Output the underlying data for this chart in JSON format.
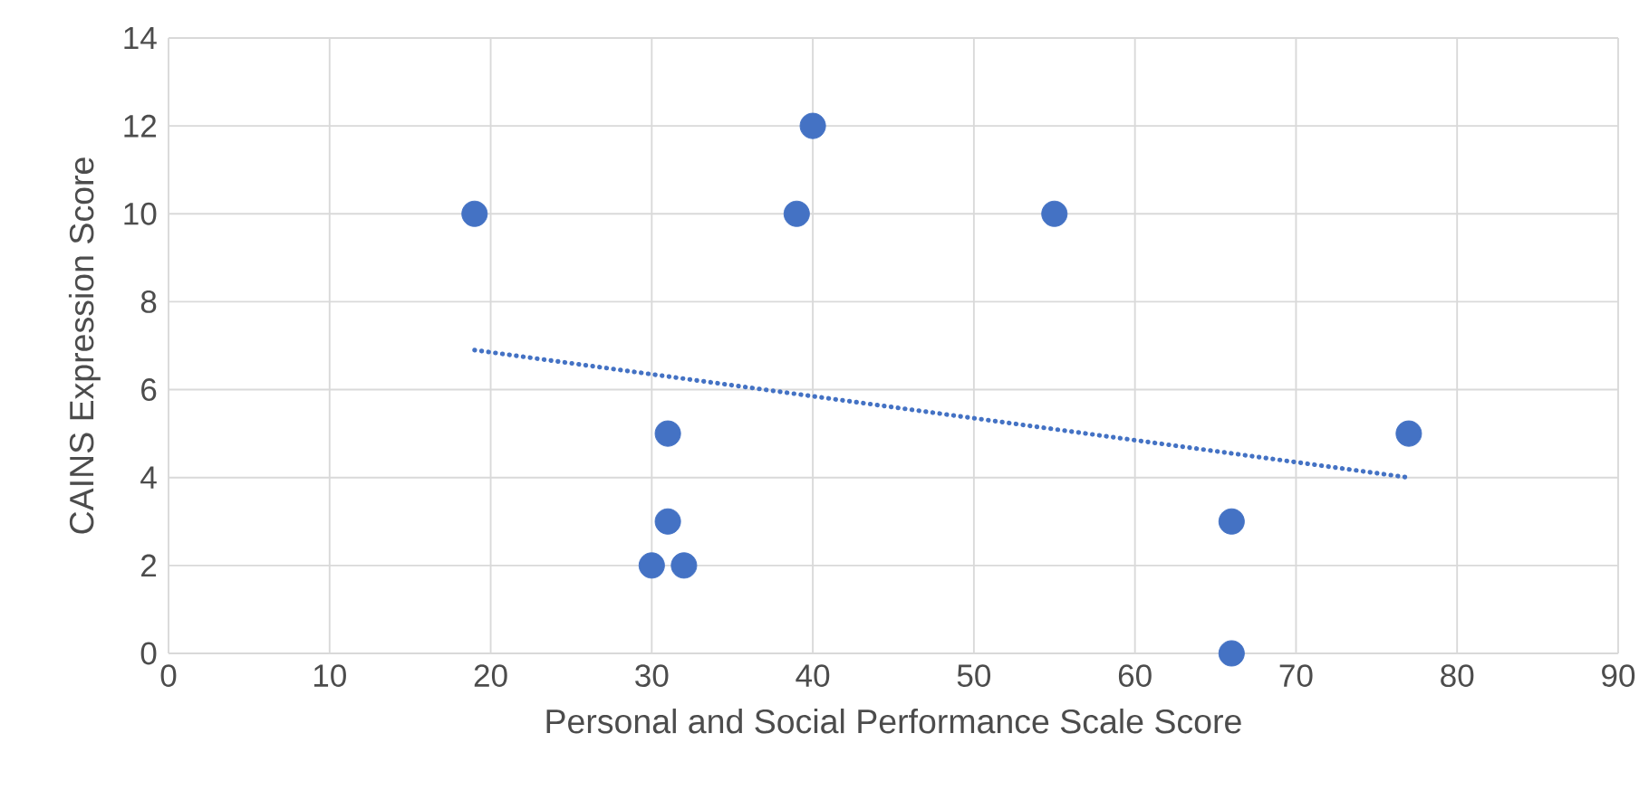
{
  "chart_data": {
    "type": "scatter",
    "xlabel": "Personal and Social Performance Scale Score",
    "ylabel": "CAINS Expression Score",
    "xlim": [
      0,
      90
    ],
    "ylim": [
      0,
      14
    ],
    "xticks": [
      0,
      10,
      20,
      30,
      40,
      50,
      60,
      70,
      80,
      90
    ],
    "yticks": [
      0,
      2,
      4,
      6,
      8,
      10,
      12,
      14
    ],
    "grid": true,
    "series": [
      {
        "color": "#4472c4",
        "marker": "circle",
        "x": [
          19,
          40,
          39,
          55,
          31,
          31,
          30,
          32,
          77,
          66,
          66
        ],
        "values": [
          10,
          12,
          10,
          10,
          5,
          3,
          2,
          2,
          5,
          3,
          0
        ]
      },
      {
        "type": "line",
        "color": "#4472c4",
        "marker": "none",
        "line_style": "dotted",
        "x": [
          19,
          77
        ],
        "values": [
          6.9,
          4.0
        ]
      }
    ]
  }
}
